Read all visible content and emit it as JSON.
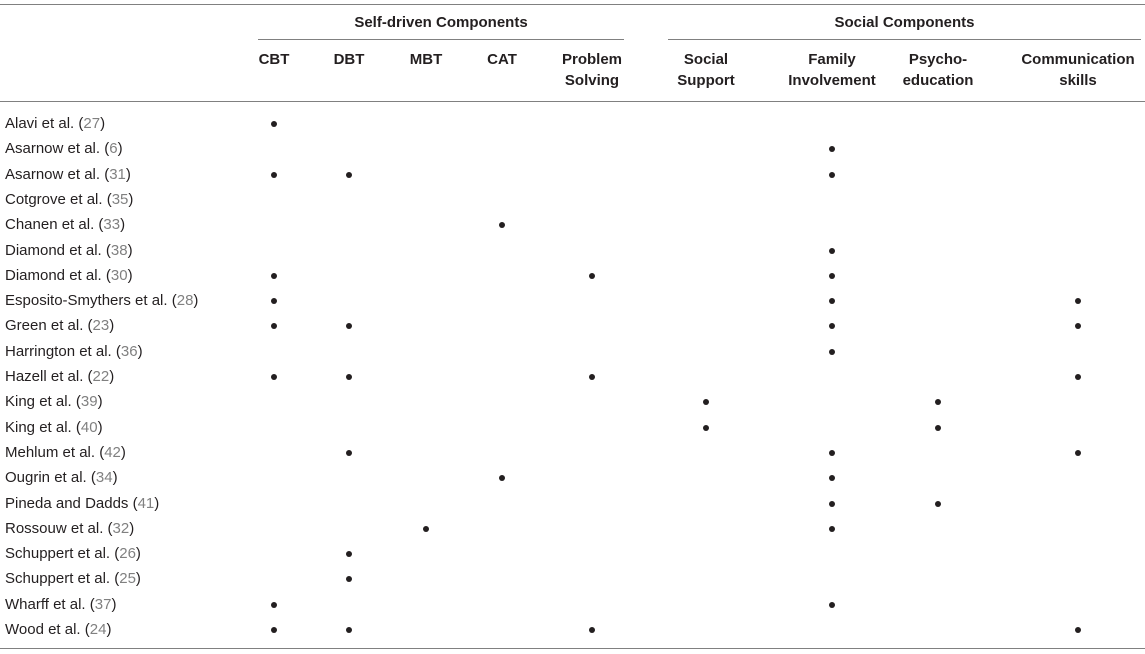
{
  "table": {
    "groups": [
      {
        "label": "Self-driven Components",
        "cols": [
          0,
          4
        ]
      },
      {
        "label": "Social Components",
        "cols": [
          5,
          8
        ]
      }
    ],
    "columns": [
      "CBT",
      "DBT",
      "MBT",
      "CAT",
      "Problem\nSolving",
      "Social\nSupport",
      "Family\nInvolvement",
      "Psycho-\neducation",
      "Communication\nskills"
    ],
    "rows": [
      {
        "author": "Alavi et al. (",
        "ref": "27",
        "close": ")",
        "marks": [
          0
        ]
      },
      {
        "author": "Asarnow et al. (",
        "ref": "6",
        "close": ")",
        "marks": [
          6
        ]
      },
      {
        "author": "Asarnow et al. (",
        "ref": "31",
        "close": ")",
        "marks": [
          0,
          1,
          6
        ]
      },
      {
        "author": "Cotgrove et al. (",
        "ref": "35",
        "close": ")",
        "marks": []
      },
      {
        "author": "Chanen et al. (",
        "ref": "33",
        "close": ")",
        "marks": [
          3
        ]
      },
      {
        "author": "Diamond et al. (",
        "ref": "38",
        "close": ")",
        "marks": [
          6
        ]
      },
      {
        "author": "Diamond et al. (",
        "ref": "30",
        "close": ")",
        "marks": [
          0,
          4,
          6
        ]
      },
      {
        "author": "Esposito-Smythers et al. (",
        "ref": "28",
        "close": ")",
        "marks": [
          0,
          6,
          8
        ]
      },
      {
        "author": "Green et al. (",
        "ref": "23",
        "close": ")",
        "marks": [
          0,
          1,
          6,
          8
        ]
      },
      {
        "author": "Harrington et al. (",
        "ref": "36",
        "close": ")",
        "marks": [
          6
        ]
      },
      {
        "author": "Hazell et al. (",
        "ref": "22",
        "close": ")",
        "marks": [
          0,
          1,
          4,
          8
        ]
      },
      {
        "author": "King et al. (",
        "ref": "39",
        "close": ")",
        "marks": [
          5,
          7
        ]
      },
      {
        "author": "King et al. (",
        "ref": "40",
        "close": ")",
        "marks": [
          5,
          7
        ]
      },
      {
        "author": "Mehlum et al. (",
        "ref": "42",
        "close": ")",
        "marks": [
          1,
          6,
          8
        ]
      },
      {
        "author": "Ougrin et al. (",
        "ref": "34",
        "close": ")",
        "marks": [
          3,
          6
        ]
      },
      {
        "author": "Pineda and Dadds (",
        "ref": "41",
        "close": ")",
        "marks": [
          6,
          7
        ]
      },
      {
        "author": "Rossouw et al. (",
        "ref": "32",
        "close": ")",
        "marks": [
          2,
          6
        ]
      },
      {
        "author": "Schuppert et al. (",
        "ref": "26",
        "close": ")",
        "marks": [
          1
        ]
      },
      {
        "author": "Schuppert et al. (",
        "ref": "25",
        "close": ")",
        "marks": [
          1
        ]
      },
      {
        "author": "Wharff et al. (",
        "ref": "37",
        "close": ")",
        "marks": [
          0,
          6
        ]
      },
      {
        "author": "Wood et al. (",
        "ref": "24",
        "close": ")",
        "marks": [
          0,
          1,
          4,
          8
        ]
      }
    ]
  },
  "colors": {
    "text": "#231f20",
    "reference": "#808080",
    "rule": "#808080"
  }
}
